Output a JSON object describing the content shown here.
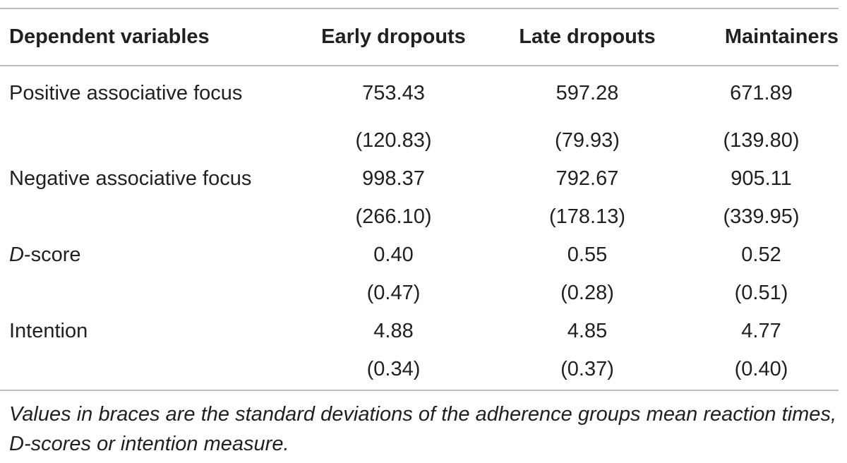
{
  "table": {
    "headers": [
      "Dependent variables",
      "Early dropouts",
      "Late dropouts",
      "Maintainers"
    ],
    "rows": [
      {
        "label": "Positive associative focus",
        "means": [
          "753.43",
          "597.28",
          "671.89"
        ],
        "sds": [
          "(120.83)",
          "(79.93)",
          "(139.80)"
        ]
      },
      {
        "label": "Negative associative focus",
        "means": [
          "998.37",
          "792.67",
          "905.11"
        ],
        "sds": [
          "(266.10)",
          "(178.13)",
          "(339.95)"
        ]
      },
      {
        "label_italic": "D",
        "label_rest": "-score",
        "means": [
          "0.40",
          "0.55",
          "0.52"
        ],
        "sds": [
          "(0.47)",
          "(0.28)",
          "(0.51)"
        ]
      },
      {
        "label": "Intention",
        "means": [
          "4.88",
          "4.85",
          "4.77"
        ],
        "sds": [
          "(0.34)",
          "(0.37)",
          "(0.40)"
        ]
      }
    ]
  },
  "footnote": "Values in braces are the standard deviations of the adherence groups mean reaction times, D-scores or intention measure."
}
